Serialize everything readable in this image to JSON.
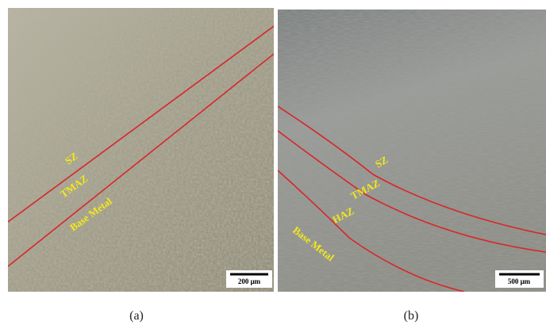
{
  "panels": [
    {
      "caption": "(a)",
      "zones": [
        "SZ",
        "TMAZ",
        "Base Metal"
      ],
      "scale_bar": "200 μm"
    },
    {
      "caption": "(b)",
      "zones": [
        "SZ",
        "TMAZ",
        "HAZ",
        "Base Metal"
      ],
      "scale_bar": "500 μm"
    }
  ]
}
